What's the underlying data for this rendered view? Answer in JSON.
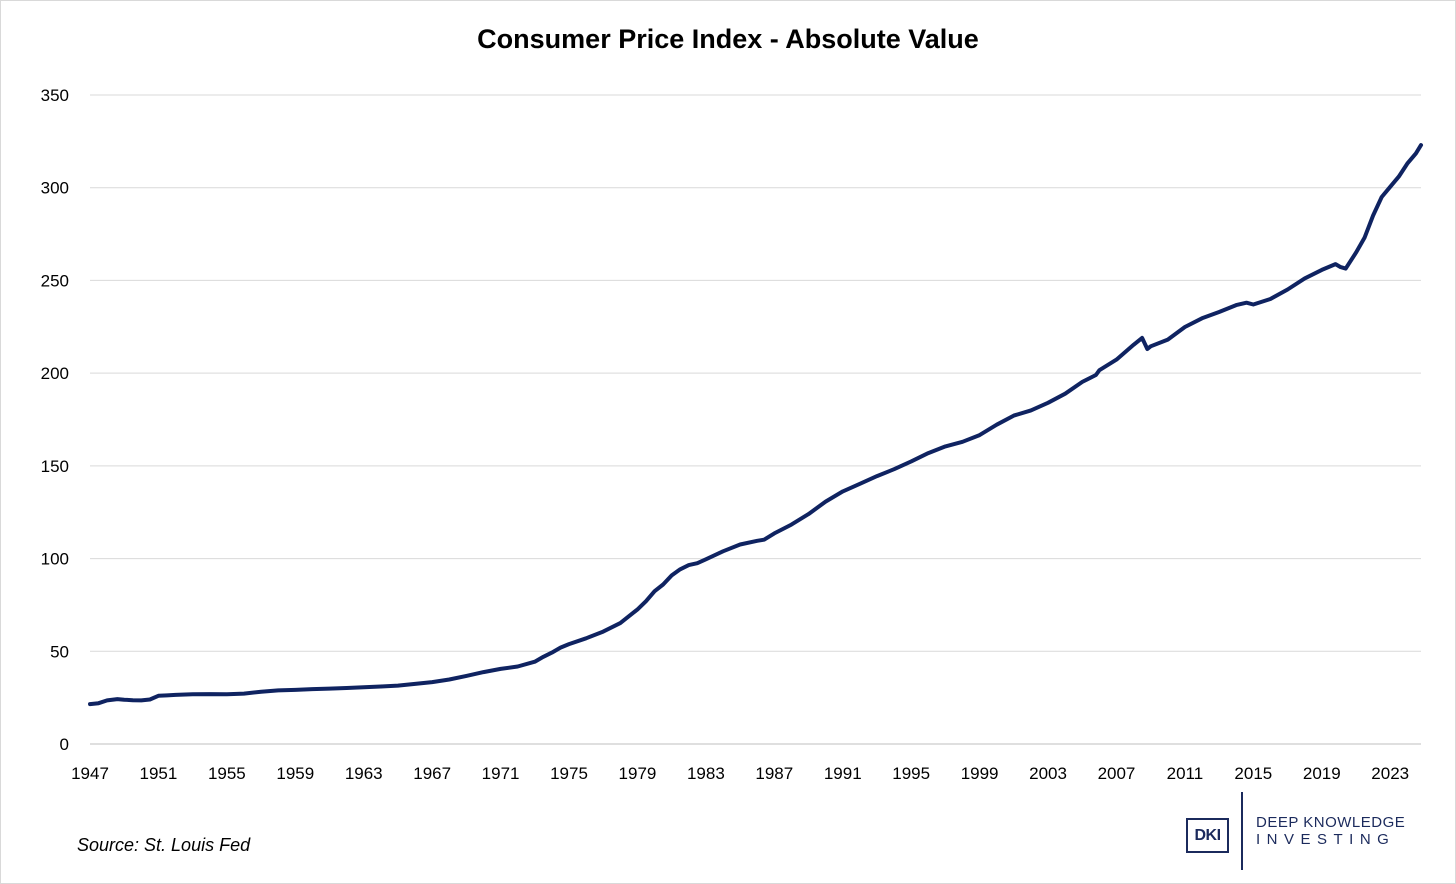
{
  "chart_data": {
    "type": "line",
    "title": "Consumer Price Index - Absolute Value",
    "xlabel": "",
    "ylabel": "",
    "ylim": [
      0,
      350
    ],
    "xlim": [
      1947,
      2024.8
    ],
    "y_ticks": [
      "0",
      "50",
      "100",
      "150",
      "200",
      "250",
      "300",
      "350"
    ],
    "x_ticks": [
      "1947",
      "1951",
      "1955",
      "1959",
      "1963",
      "1967",
      "1971",
      "1975",
      "1979",
      "1983",
      "1987",
      "1991",
      "1995",
      "1999",
      "2003",
      "2007",
      "2011",
      "2015",
      "2019",
      "2023"
    ],
    "grid": true,
    "color": "#0f2361",
    "series": [
      {
        "name": "CPI",
        "x": [
          1947,
          1947.5,
          1948,
          1948.6,
          1949,
          1949.5,
          1950,
          1950.5,
          1951,
          1951.5,
          1952,
          1953,
          1954,
          1955,
          1956,
          1957,
          1958,
          1959,
          1960,
          1961,
          1962,
          1963,
          1964,
          1965,
          1966,
          1967,
          1968,
          1969,
          1970,
          1971,
          1972,
          1973,
          1973.5,
          1974,
          1974.5,
          1975,
          1976,
          1977,
          1978,
          1979,
          1979.5,
          1980,
          1980.5,
          1981,
          1981.5,
          1982,
          1982.5,
          1983,
          1984,
          1985,
          1986,
          1986.4,
          1987,
          1988,
          1989,
          1990,
          1990.5,
          1991,
          1992,
          1993,
          1994,
          1995,
          1996,
          1997,
          1998,
          1999,
          2000,
          2001,
          2002,
          2003,
          2004,
          2005,
          2005.8,
          2006,
          2007,
          2008,
          2008.5,
          2008.8,
          2009,
          2010,
          2011,
          2012,
          2013,
          2014,
          2014.6,
          2015,
          2016,
          2017,
          2018,
          2019,
          2019.8,
          2020.1,
          2020.4,
          2021,
          2021.5,
          2022,
          2022.5,
          2023,
          2023.5,
          2024,
          2024.5,
          2024.8
        ],
        "values": [
          21.5,
          22.0,
          23.5,
          24.2,
          23.9,
          23.6,
          23.5,
          24.0,
          26.0,
          26.2,
          26.5,
          26.8,
          26.9,
          26.8,
          27.2,
          28.2,
          28.9,
          29.2,
          29.6,
          29.9,
          30.2,
          30.6,
          31.0,
          31.5,
          32.4,
          33.4,
          34.8,
          36.7,
          38.8,
          40.5,
          41.8,
          44.4,
          47.0,
          49.3,
          52.0,
          53.9,
          57.0,
          60.6,
          65.2,
          72.6,
          77.0,
          82.4,
          86.0,
          90.9,
          94.2,
          96.5,
          97.5,
          99.6,
          103.9,
          107.6,
          109.6,
          110.2,
          113.6,
          118.3,
          124.0,
          130.7,
          133.5,
          136.2,
          140.3,
          144.5,
          148.2,
          152.4,
          156.9,
          160.5,
          163.0,
          166.6,
          172.2,
          177.1,
          179.9,
          184.0,
          188.9,
          195.3,
          199.0,
          201.6,
          207.3,
          215.3,
          219.0,
          213.0,
          214.5,
          218.1,
          224.9,
          229.6,
          233.0,
          236.7,
          238.0,
          237.0,
          240.0,
          245.1,
          251.1,
          255.7,
          258.8,
          257.2,
          256.4,
          265.0,
          273.0,
          285.0,
          295.0,
          300.5,
          306.0,
          313.0,
          318.5,
          323.0
        ]
      }
    ],
    "source_note": "Source: St. Louis Fed"
  },
  "logo": {
    "mark": "DKI",
    "line1": "DEEP KNOWLEDGE",
    "line2": "INVESTING"
  }
}
